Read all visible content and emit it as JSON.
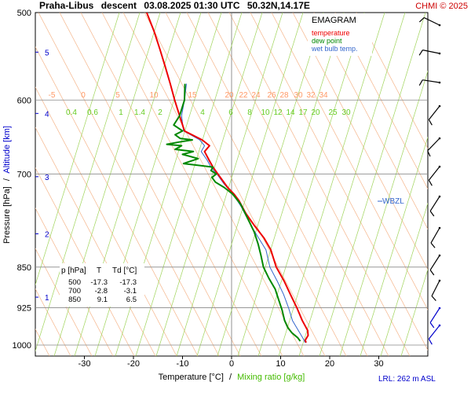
{
  "header": {
    "station": "Praha-Libus",
    "mode": "descent",
    "datetime": "03.08.2025 01:30 UTC",
    "coords": "50.32N,14.17E",
    "credit": "CHMI © 2025"
  },
  "legend": {
    "title": "EMAGRAM",
    "items": [
      {
        "label": "temperature",
        "color": "#ee0000"
      },
      {
        "label": "dew point",
        "color": "#008800"
      },
      {
        "label": "wet bulb temp.",
        "color": "#3366cc"
      }
    ]
  },
  "axes": {
    "ylabel_pressure": "Pressure [hPa]",
    "ylabel_sep": "/",
    "ylabel_altitude": "Altitude [km]",
    "xlabel_temp": "Temperature [°C]",
    "xlabel_sep": "/",
    "xlabel_mixing": "Mixing ratio [g/kg]",
    "lrl": "LRL: 262 m ASL",
    "wbzl": "WBZL",
    "colors": {
      "pressure": "#000000",
      "altitude": "#0000cc",
      "mixing": "#44bb00",
      "isotherm_label": "#ff8844"
    }
  },
  "table": {
    "header": [
      "p [hPa]",
      "T",
      "Td [°C]"
    ],
    "rows": [
      [
        "500",
        "-17.3",
        "-17.3"
      ],
      [
        "700",
        "-2.8",
        "-3.1"
      ],
      [
        "850",
        "9.1",
        "6.5"
      ]
    ]
  },
  "chart_data": {
    "type": "line",
    "y_scale": "log",
    "xlim": [
      -40,
      40
    ],
    "ylim": [
      1010,
      500
    ],
    "pressure_ticks": [
      500,
      600,
      700,
      850,
      925,
      1000
    ],
    "temp_ticks": [
      -30,
      -20,
      -10,
      0,
      10,
      20,
      30
    ],
    "altitude_ticks_km": [
      {
        "label": "1",
        "p": 905
      },
      {
        "label": "2",
        "p": 793
      },
      {
        "label": "3",
        "p": 704
      },
      {
        "label": "4",
        "p": 617
      },
      {
        "label": "5",
        "p": 543
      }
    ],
    "mixing_ratio_labels": [
      "0.4",
      "0.6",
      "1",
      "1.4",
      "2",
      "4",
      "6",
      "8",
      "10",
      "12",
      "14",
      "17",
      "20",
      "25",
      "30"
    ],
    "isotherm_labels": [
      "-5",
      "0",
      "5",
      "10",
      "15",
      "20",
      "22",
      "24",
      "26",
      "28",
      "30",
      "32",
      "34"
    ],
    "series": [
      {
        "name": "temperature",
        "color": "#ee0000",
        "points": [
          [
            -17.3,
            500
          ],
          [
            -15.8,
            520
          ],
          [
            -14.6,
            540
          ],
          [
            -13.5,
            560
          ],
          [
            -12.5,
            580
          ],
          [
            -11.6,
            600
          ],
          [
            -10.6,
            620
          ],
          [
            -9.6,
            640
          ],
          [
            -6.0,
            652
          ],
          [
            -4.5,
            660
          ],
          [
            -5.5,
            668
          ],
          [
            -4.6,
            680
          ],
          [
            -3.8,
            690
          ],
          [
            -2.8,
            700
          ],
          [
            -1.8,
            710
          ],
          [
            -0.8,
            720
          ],
          [
            0.5,
            730
          ],
          [
            1.5,
            740
          ],
          [
            2.9,
            760
          ],
          [
            4.7,
            780
          ],
          [
            6.6,
            800
          ],
          [
            8.0,
            820
          ],
          [
            9.1,
            850
          ],
          [
            10.7,
            875
          ],
          [
            12.0,
            900
          ],
          [
            13.3,
            925
          ],
          [
            14.4,
            950
          ],
          [
            15.5,
            970
          ],
          [
            15.6,
            980
          ],
          [
            15.0,
            990
          ],
          [
            15.2,
            995
          ]
        ]
      },
      {
        "name": "wet bulb temp.",
        "color": "#3366cc",
        "points": [
          [
            -9.2,
            580
          ],
          [
            -9.6,
            600
          ],
          [
            -10.2,
            620
          ],
          [
            -9.8,
            640
          ],
          [
            -6.5,
            652
          ],
          [
            -5.5,
            660
          ],
          [
            -6.2,
            668
          ],
          [
            -5.0,
            680
          ],
          [
            -4.2,
            690
          ],
          [
            -3.0,
            700
          ],
          [
            -1.5,
            715
          ],
          [
            0.3,
            730
          ],
          [
            2.0,
            750
          ],
          [
            4.0,
            780
          ],
          [
            5.5,
            800
          ],
          [
            7.0,
            820
          ],
          [
            7.8,
            850
          ],
          [
            9.3,
            875
          ],
          [
            10.6,
            900
          ],
          [
            11.6,
            925
          ],
          [
            12.4,
            950
          ],
          [
            13.6,
            970
          ],
          [
            14.5,
            985
          ],
          [
            15.0,
            995
          ]
        ]
      },
      {
        "name": "dew point",
        "color": "#008800",
        "points": [
          [
            -9.5,
            580
          ],
          [
            -9.6,
            600
          ],
          [
            -10.6,
            620
          ],
          [
            -11.8,
            632
          ],
          [
            -10.0,
            640
          ],
          [
            -11.5,
            645
          ],
          [
            -10.5,
            650
          ],
          [
            -8.0,
            652
          ],
          [
            -10.8,
            655
          ],
          [
            -13.2,
            658
          ],
          [
            -10.2,
            660
          ],
          [
            -11.5,
            665
          ],
          [
            -7.8,
            668
          ],
          [
            -10.0,
            672
          ],
          [
            -6.8,
            678
          ],
          [
            -9.8,
            685
          ],
          [
            -3.8,
            690
          ],
          [
            -4.2,
            695
          ],
          [
            -3.1,
            700
          ],
          [
            -4.0,
            705
          ],
          [
            -3.3,
            712
          ],
          [
            -1.5,
            720
          ],
          [
            0.2,
            730
          ],
          [
            1.8,
            745
          ],
          [
            3.4,
            770
          ],
          [
            4.6,
            790
          ],
          [
            5.4,
            810
          ],
          [
            6.0,
            830
          ],
          [
            6.5,
            850
          ],
          [
            7.6,
            870
          ],
          [
            8.9,
            890
          ],
          [
            9.6,
            910
          ],
          [
            10.3,
            930
          ],
          [
            10.8,
            950
          ],
          [
            11.5,
            965
          ],
          [
            12.3,
            975
          ],
          [
            13.5,
            985
          ],
          [
            14.0,
            992
          ]
        ]
      }
    ]
  }
}
